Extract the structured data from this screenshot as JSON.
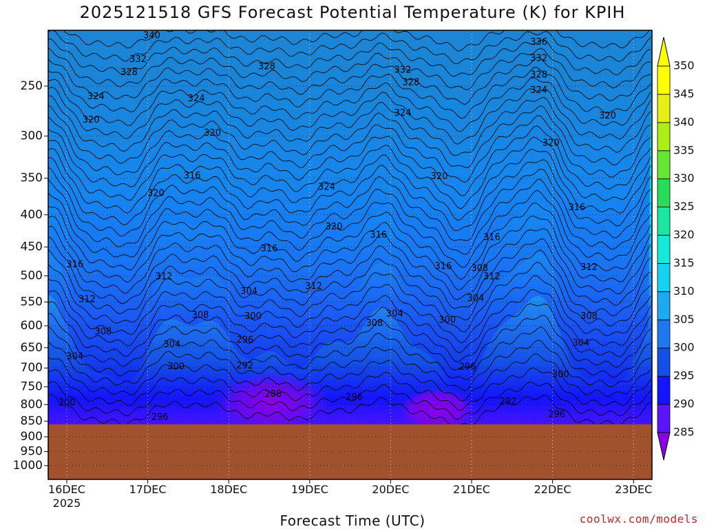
{
  "chart_data": {
    "type": "heatmap",
    "title": "2025121518 GFS Forecast Potential Temperature (K) for KPIH",
    "xlabel": "Forecast Time (UTC)",
    "ylabel": "",
    "credit": "coolwx.com/models",
    "x_categories": [
      "16DEC",
      "17DEC",
      "18DEC",
      "19DEC",
      "20DEC",
      "21DEC",
      "22DEC",
      "23DEC"
    ],
    "x_year_label": "2025",
    "y_ticks": [
      250,
      300,
      350,
      400,
      450,
      500,
      550,
      600,
      650,
      700,
      750,
      800,
      850,
      900,
      950,
      1000
    ],
    "y_scale": "log",
    "y_direction": "reversed",
    "ylim": [
      1000,
      200
    ],
    "grid": true,
    "colorbar": {
      "values": [
        285,
        290,
        295,
        300,
        305,
        310,
        315,
        320,
        325,
        330,
        335,
        340,
        345,
        350
      ],
      "colors": [
        "#8c00e6",
        "#5a14ff",
        "#1414ff",
        "#1450e6",
        "#1e78f0",
        "#1eaaf0",
        "#14d2f0",
        "#14eadc",
        "#1ee6a0",
        "#28dc5a",
        "#64e632",
        "#aaf014",
        "#e6f014",
        "#ffff00"
      ],
      "placement": "right"
    },
    "terrain_color": "#a0522d",
    "surface_pressure": 860,
    "contour_interval": 2,
    "contour_labels": [
      {
        "x_day": 1.05,
        "p": 208,
        "v": 340
      },
      {
        "x_day": 0.88,
        "p": 227,
        "v": 332
      },
      {
        "x_day": 0.77,
        "p": 238,
        "v": 328
      },
      {
        "x_day": 1.6,
        "p": 262,
        "v": 324
      },
      {
        "x_day": 0.36,
        "p": 260,
        "v": 324
      },
      {
        "x_day": 0.3,
        "p": 283,
        "v": 320
      },
      {
        "x_day": 1.8,
        "p": 297,
        "v": 320
      },
      {
        "x_day": 2.47,
        "p": 233,
        "v": 328
      },
      {
        "x_day": 1.55,
        "p": 347,
        "v": 316
      },
      {
        "x_day": 1.1,
        "p": 370,
        "v": 320
      },
      {
        "x_day": 3.21,
        "p": 362,
        "v": 324
      },
      {
        "x_day": 3.3,
        "p": 418,
        "v": 320
      },
      {
        "x_day": 4.15,
        "p": 236,
        "v": 332
      },
      {
        "x_day": 4.25,
        "p": 247,
        "v": 328
      },
      {
        "x_day": 4.15,
        "p": 276,
        "v": 324
      },
      {
        "x_day": 4.6,
        "p": 348,
        "v": 320
      },
      {
        "x_day": 3.85,
        "p": 431,
        "v": 316
      },
      {
        "x_day": 5.83,
        "p": 213,
        "v": 336
      },
      {
        "x_day": 5.83,
        "p": 226,
        "v": 332
      },
      {
        "x_day": 5.83,
        "p": 240,
        "v": 328
      },
      {
        "x_day": 5.83,
        "p": 254,
        "v": 324
      },
      {
        "x_day": 6.68,
        "p": 279,
        "v": 320
      },
      {
        "x_day": 5.98,
        "p": 308,
        "v": 320
      },
      {
        "x_day": 6.3,
        "p": 390,
        "v": 316
      },
      {
        "x_day": 2.5,
        "p": 453,
        "v": 316
      },
      {
        "x_day": 5.25,
        "p": 435,
        "v": 316
      },
      {
        "x_day": 0.1,
        "p": 480,
        "v": 316
      },
      {
        "x_day": 1.2,
        "p": 502,
        "v": 312
      },
      {
        "x_day": 0.25,
        "p": 545,
        "v": 312
      },
      {
        "x_day": 3.05,
        "p": 520,
        "v": 312
      },
      {
        "x_day": 4.65,
        "p": 483,
        "v": 316
      },
      {
        "x_day": 5.1,
        "p": 487,
        "v": 308
      },
      {
        "x_day": 5.25,
        "p": 502,
        "v": 312
      },
      {
        "x_day": 6.45,
        "p": 485,
        "v": 312
      },
      {
        "x_day": 2.25,
        "p": 530,
        "v": 304
      },
      {
        "x_day": 1.65,
        "p": 578,
        "v": 308
      },
      {
        "x_day": 0.45,
        "p": 614,
        "v": 308
      },
      {
        "x_day": 2.3,
        "p": 580,
        "v": 300
      },
      {
        "x_day": 3.8,
        "p": 595,
        "v": 308
      },
      {
        "x_day": 4.05,
        "p": 575,
        "v": 304
      },
      {
        "x_day": 4.7,
        "p": 588,
        "v": 300
      },
      {
        "x_day": 5.05,
        "p": 543,
        "v": 304
      },
      {
        "x_day": 6.45,
        "p": 580,
        "v": 308
      },
      {
        "x_day": 1.3,
        "p": 643,
        "v": 304
      },
      {
        "x_day": 0.1,
        "p": 672,
        "v": 304
      },
      {
        "x_day": 2.2,
        "p": 633,
        "v": 296
      },
      {
        "x_day": 1.35,
        "p": 697,
        "v": 300
      },
      {
        "x_day": 2.2,
        "p": 695,
        "v": 292
      },
      {
        "x_day": 6.35,
        "p": 640,
        "v": 304
      },
      {
        "x_day": 4.95,
        "p": 698,
        "v": 296
      },
      {
        "x_day": 6.1,
        "p": 717,
        "v": 300
      },
      {
        "x_day": 2.55,
        "p": 771,
        "v": 288
      },
      {
        "x_day": 3.55,
        "p": 780,
        "v": 296
      },
      {
        "x_day": 5.45,
        "p": 792,
        "v": 292
      },
      {
        "x_day": 6.05,
        "p": 830,
        "v": 296
      },
      {
        "x_day": 0.0,
        "p": 795,
        "v": 300
      },
      {
        "x_day": 1.15,
        "p": 838,
        "v": 296
      }
    ]
  }
}
